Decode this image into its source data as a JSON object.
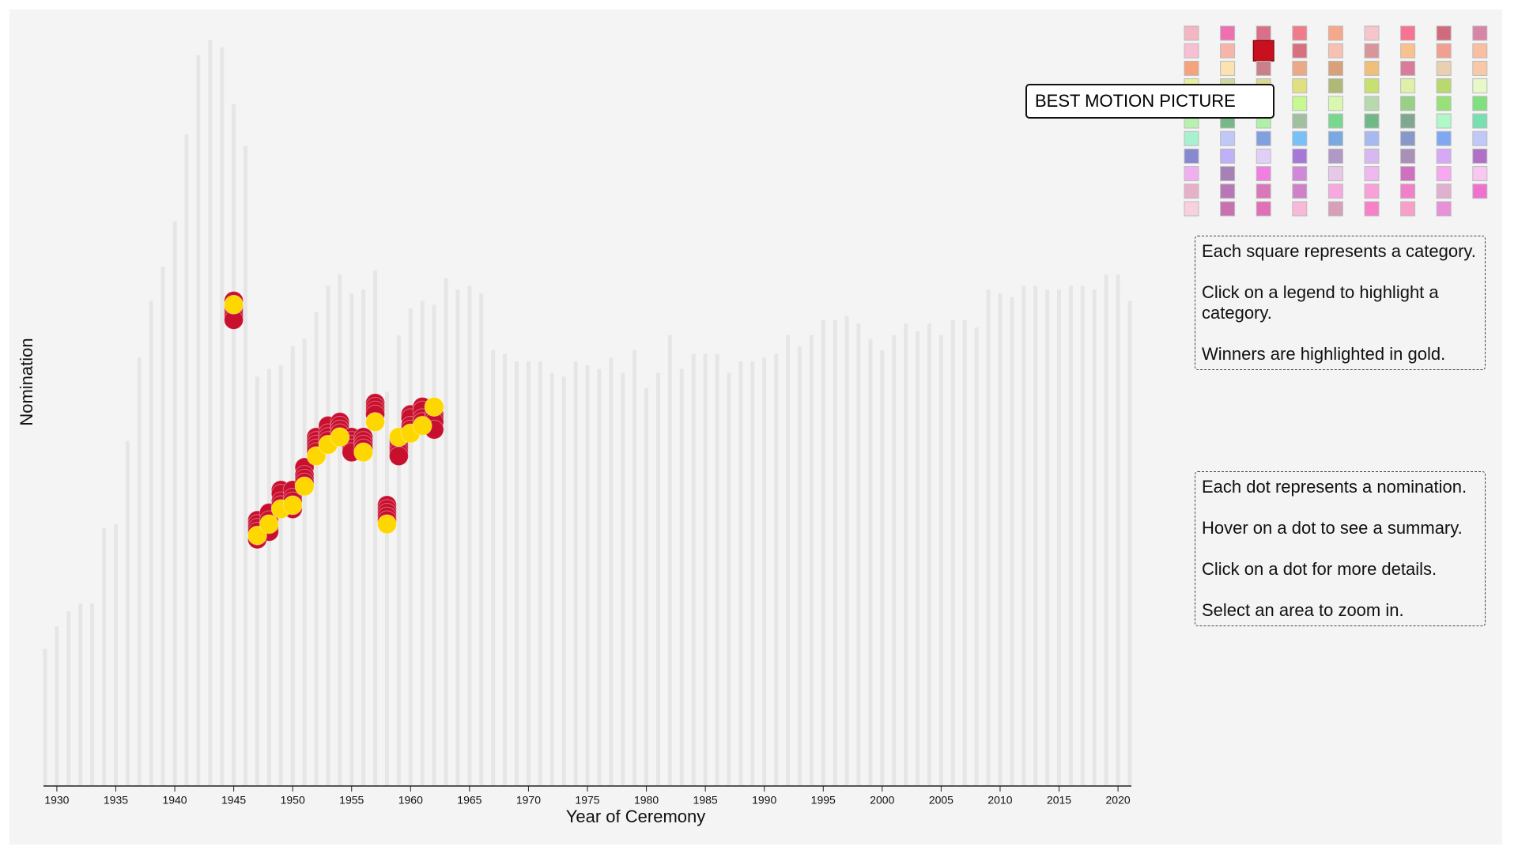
{
  "chart_data": {
    "type": "bar-dots",
    "x_label": "Year of Ceremony",
    "y_label": "Nomination",
    "bar_color": "#e6e6e6",
    "x": [
      1929,
      1930,
      1931,
      1932,
      1933,
      1934,
      1935,
      1936,
      1937,
      1938,
      1939,
      1940,
      1941,
      1942,
      1943,
      1944,
      1945,
      1946,
      1947,
      1948,
      1949,
      1950,
      1951,
      1952,
      1953,
      1954,
      1955,
      1956,
      1957,
      1958,
      1959,
      1960,
      1961,
      1962,
      1963,
      1964,
      1965,
      1966,
      1967,
      1968,
      1969,
      1970,
      1971,
      1972,
      1973,
      1974,
      1975,
      1976,
      1977,
      1978,
      1979,
      1980,
      1981,
      1982,
      1983,
      1984,
      1985,
      1986,
      1987,
      1988,
      1989,
      1990,
      1991,
      1992,
      1993,
      1994,
      1995,
      1996,
      1997,
      1998,
      1999,
      2000,
      2001,
      2002,
      2003,
      2004,
      2005,
      2006,
      2007,
      2008,
      2009,
      2010,
      2011,
      2012,
      2013,
      2014,
      2015,
      2016,
      2017,
      2018,
      2019,
      2020,
      2021
    ],
    "values": [
      36,
      42,
      46,
      48,
      48,
      68,
      69,
      91,
      113,
      128,
      137,
      149,
      172,
      193,
      197,
      195,
      180,
      169,
      108,
      110,
      111,
      116,
      118,
      125,
      132,
      135,
      130,
      131,
      136,
      104,
      119,
      126,
      128,
      127,
      134,
      131,
      132,
      130,
      115,
      114,
      112,
      112,
      112,
      109,
      108,
      112,
      111,
      110,
      113,
      109,
      115,
      105,
      109,
      119,
      110,
      114,
      114,
      114,
      109,
      112,
      112,
      113,
      114,
      119,
      116,
      119,
      123,
      123,
      124,
      122,
      118,
      115,
      119,
      122,
      120,
      122,
      119,
      123,
      123,
      121,
      131,
      130,
      129,
      132,
      132,
      131,
      131,
      132,
      132,
      131,
      135,
      135,
      128
    ],
    "xlim": [
      1929,
      2021
    ],
    "xticks": [
      1930,
      1935,
      1940,
      1945,
      1950,
      1955,
      1960,
      1965,
      1970,
      1975,
      1980,
      1985,
      1990,
      1995,
      2000,
      2005,
      2010,
      2015,
      2020
    ],
    "ylim": [
      0,
      200
    ],
    "dots": [
      {
        "color": "#c8102e",
        "x": [
          1945,
          1945,
          1945,
          1945,
          1945,
          1947,
          1947,
          1947,
          1947,
          1947,
          1948,
          1948,
          1948,
          1948,
          1949,
          1949,
          1949,
          1949,
          1950,
          1950,
          1950,
          1950,
          1951,
          1951,
          1951,
          1951,
          1952,
          1952,
          1952,
          1952,
          1952,
          1953,
          1953,
          1953,
          1953,
          1954,
          1954,
          1954,
          1954,
          1955,
          1955,
          1955,
          1955,
          1955,
          1956,
          1956,
          1956,
          1956,
          1957,
          1957,
          1957,
          1957,
          1958,
          1958,
          1958,
          1958,
          1958,
          1959,
          1959,
          1959,
          1959,
          1959,
          1960,
          1960,
          1960,
          1960,
          1961,
          1961,
          1961,
          1961,
          1962,
          1962,
          1962,
          1962
        ],
        "values": [
          128,
          126,
          125,
          124,
          123,
          70,
          69,
          68,
          67,
          65,
          72,
          70,
          68,
          67,
          78,
          77,
          75,
          74,
          78,
          76,
          75,
          73,
          84,
          82,
          81,
          80,
          92,
          91,
          90,
          89,
          88,
          95,
          93,
          92,
          91,
          96,
          95,
          94,
          93,
          92,
          91,
          90,
          89,
          88,
          92,
          91,
          90,
          89,
          101,
          100,
          99,
          98,
          74,
          73,
          72,
          71,
          70,
          91,
          90,
          89,
          88,
          87,
          98,
          97,
          95,
          94,
          100,
          99,
          97,
          96,
          98,
          97,
          96,
          94
        ]
      },
      {
        "color": "#ffd700",
        "x": [
          1945,
          1947,
          1948,
          1949,
          1950,
          1951,
          1952,
          1953,
          1954,
          1956,
          1957,
          1958,
          1959,
          1960,
          1961,
          1962
        ],
        "values": [
          127,
          66,
          69,
          73,
          74,
          79,
          87,
          90,
          92,
          88,
          96,
          69,
          92,
          93,
          95,
          100
        ]
      }
    ],
    "legend_colors": [
      "#f4b6c2",
      "#f06fb0",
      "#d9708a",
      "#f07b8a",
      "#f5a98a",
      "#f7c6cc",
      "#f7738f",
      "#cf6b7b",
      "#d884a6",
      "#f6bfd2",
      "#f8b4a8",
      "#c8101e",
      "#d9707f",
      "#f6c1b0",
      "#d8959a",
      "#f8c28e",
      "#f0a090",
      "#f8c0a0",
      "#f6a27c",
      "#fbe2b0",
      "#c98088",
      "#eca986",
      "#d9a07a",
      "#eec07a",
      "#d87c98",
      "#e8d0b0",
      "#f8c8a8",
      "#e8f0a0",
      "#d0d8a0",
      "#d8d890",
      "#e0e080",
      "#b0b878",
      "#c8e070",
      "#e0f0a8",
      "#b8d870",
      "#e8f8c8",
      "#c8f0a0",
      "#a8c898",
      "#98d080",
      "#c8f890",
      "#d8f8b0",
      "#b8d8b0",
      "#98d088",
      "#98e078",
      "#80e080",
      "#b8f0b0",
      "#78b888",
      "#b0f0a8",
      "#a0c0a0",
      "#78d890",
      "#70b888",
      "#80a890",
      "#b0f8c8",
      "#78e0b0",
      "#a8f0d0",
      "#c0c8f8",
      "#80a0e0",
      "#78c0f8",
      "#7aa8e0",
      "#a8b8f0",
      "#8898c8",
      "#80a8f0",
      "#c0c8f8",
      "#8888d0",
      "#c0b0f8",
      "#e0d0f8",
      "#a878d8",
      "#b098c8",
      "#d8b8f0",
      "#a890b8",
      "#d8a8f8",
      "#b070c8",
      "#f0b0f0",
      "#a880b8",
      "#f080e0",
      "#d088d8",
      "#e8c8e8",
      "#f0b8f0",
      "#d070c0",
      "#f8a8f0",
      "#f8c8f0",
      "#e8b0c8",
      "#b878b8",
      "#d878b8",
      "#d080c8",
      "#f8a8e0",
      "#f8a0d8",
      "#f080c8",
      "#e0b0d0",
      "#f070d0",
      "#f8d0e0",
      "#c870b0",
      "#e070b8",
      "#f8b8d8",
      "#d8a0b8",
      "#f880c8",
      "#f8a0c8",
      "#e890d8"
    ],
    "legend_selected": 11,
    "tooltip": "BEST MOTION PICTURE",
    "notes": [
      [
        "Each square represents a category.",
        "Click on a legend to highlight a category.",
        "Winners are highlighted in gold."
      ],
      [
        "Each dot represents a nomination.",
        "Hover on a dot to see a summary.",
        "Click on a dot for more details.",
        "Select an area to zoom in."
      ]
    ]
  }
}
